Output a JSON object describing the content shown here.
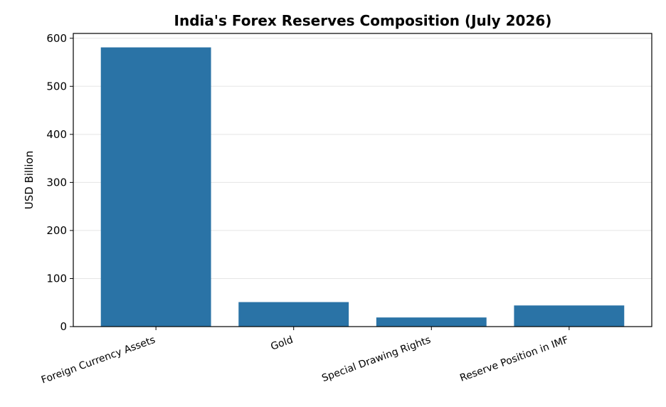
{
  "chart_data": {
    "type": "bar",
    "title": "India's Forex Reserves Composition (July 2026)",
    "xlabel": "",
    "ylabel": "USD Billion",
    "categories": [
      "Foreign Currency Assets",
      "Gold",
      "Special Drawing Rights",
      "Reserve Position in IMF"
    ],
    "values": [
      581,
      51,
      19,
      44
    ],
    "ylim": [
      0,
      610
    ],
    "yticks": [
      0,
      100,
      200,
      300,
      400,
      500,
      600
    ],
    "grid": "y",
    "bar_color": "#2a73a6",
    "grid_color": "#e5e5e5"
  }
}
